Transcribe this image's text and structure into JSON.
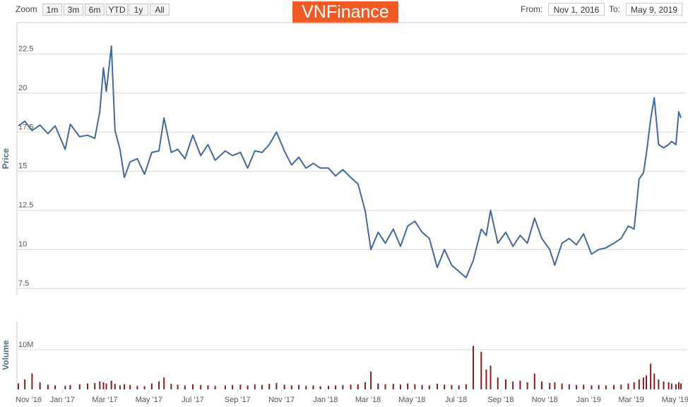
{
  "range_selector": {
    "zoom_label": "Zoom",
    "buttons": [
      "1m",
      "3m",
      "6m",
      "YTD",
      "1y",
      "All"
    ],
    "from_label": "From:",
    "from": "Nov 1, 2016",
    "to_label": "To:",
    "to": "May 9, 2019"
  },
  "logo": "VNFinance",
  "chart_data": [
    {
      "type": "line",
      "ylabel": "Price",
      "color": "#41699b",
      "xlim": [
        "2016-11-01",
        "2019-05-09"
      ],
      "ylim": [
        7.1,
        24.5
      ],
      "yticks": [
        7.5,
        10,
        12.5,
        15,
        17.5,
        20,
        22.5
      ],
      "grid": true,
      "x": [
        "2016-11-01",
        "2016-11-10",
        "2016-11-20",
        "2016-12-01",
        "2016-12-12",
        "2016-12-22",
        "2017-01-05",
        "2017-01-12",
        "2017-01-25",
        "2017-02-05",
        "2017-02-15",
        "2017-02-22",
        "2017-02-27",
        "2017-03-03",
        "2017-03-10",
        "2017-03-15",
        "2017-03-22",
        "2017-03-28",
        "2017-04-05",
        "2017-04-15",
        "2017-04-25",
        "2017-05-05",
        "2017-05-15",
        "2017-05-22",
        "2017-06-01",
        "2017-06-10",
        "2017-06-20",
        "2017-07-01",
        "2017-07-12",
        "2017-07-22",
        "2017-08-01",
        "2017-08-15",
        "2017-08-25",
        "2017-09-05",
        "2017-09-15",
        "2017-09-25",
        "2017-10-05",
        "2017-10-15",
        "2017-10-25",
        "2017-11-05",
        "2017-11-15",
        "2017-11-25",
        "2017-12-05",
        "2017-12-15",
        "2017-12-25",
        "2018-01-05",
        "2018-01-15",
        "2018-01-25",
        "2018-02-05",
        "2018-02-15",
        "2018-02-25",
        "2018-03-05",
        "2018-03-15",
        "2018-03-25",
        "2018-04-05",
        "2018-04-15",
        "2018-04-25",
        "2018-05-05",
        "2018-05-15",
        "2018-05-25",
        "2018-06-05",
        "2018-06-15",
        "2018-06-25",
        "2018-07-05",
        "2018-07-15",
        "2018-07-25",
        "2018-08-05",
        "2018-08-12",
        "2018-08-18",
        "2018-08-28",
        "2018-09-08",
        "2018-09-18",
        "2018-09-28",
        "2018-10-08",
        "2018-10-18",
        "2018-10-28",
        "2018-11-08",
        "2018-11-15",
        "2018-11-25",
        "2018-12-05",
        "2018-12-15",
        "2018-12-25",
        "2019-01-05",
        "2019-01-15",
        "2019-01-25",
        "2019-02-05",
        "2019-02-15",
        "2019-02-25",
        "2019-03-05",
        "2019-03-12",
        "2019-03-18",
        "2019-03-22",
        "2019-03-28",
        "2019-04-02",
        "2019-04-08",
        "2019-04-15",
        "2019-04-22",
        "2019-04-26",
        "2019-05-02",
        "2019-05-06",
        "2019-05-09"
      ],
      "values": [
        17.9,
        18.2,
        17.6,
        17.95,
        17.4,
        17.9,
        16.4,
        18.0,
        17.2,
        17.3,
        17.1,
        18.8,
        21.6,
        20.1,
        23.0,
        17.6,
        16.4,
        14.6,
        15.6,
        15.8,
        14.8,
        16.2,
        16.3,
        18.4,
        16.2,
        16.4,
        15.8,
        17.3,
        16.0,
        16.7,
        15.7,
        16.3,
        16.0,
        16.2,
        15.2,
        16.3,
        16.2,
        16.7,
        17.5,
        16.3,
        15.4,
        15.9,
        15.2,
        15.5,
        15.2,
        15.2,
        14.7,
        15.1,
        14.6,
        14.2,
        12.5,
        10.0,
        11.1,
        10.4,
        11.3,
        10.2,
        11.5,
        11.8,
        11.1,
        10.7,
        8.85,
        10.0,
        9.0,
        8.6,
        8.2,
        9.3,
        11.3,
        10.9,
        12.5,
        10.4,
        11.1,
        10.2,
        10.9,
        10.4,
        12.0,
        10.7,
        10.0,
        9.0,
        10.4,
        10.7,
        10.3,
        11.0,
        9.7,
        10.0,
        10.1,
        10.4,
        10.7,
        11.5,
        11.3,
        14.5,
        14.9,
        16.1,
        18.3,
        19.7,
        16.7,
        16.5,
        16.7,
        16.9,
        16.7,
        18.8,
        18.4
      ]
    },
    {
      "type": "bar",
      "ylabel": "Volume",
      "color": "#8b1c1c",
      "xlim": [
        "2016-11-01",
        "2019-05-09"
      ],
      "ylim": [
        0,
        17300000
      ],
      "yticks": [
        {
          "value": 10000000,
          "label": "10M"
        }
      ],
      "grid": true,
      "xticks": [
        {
          "value": "2016-11-01",
          "label": "Nov '16"
        },
        {
          "value": "2017-01-01",
          "label": "Jan '17"
        },
        {
          "value": "2017-03-01",
          "label": "Mar '17"
        },
        {
          "value": "2017-05-01",
          "label": "May '17"
        },
        {
          "value": "2017-07-01",
          "label": "Jul '17"
        },
        {
          "value": "2017-09-01",
          "label": "Sep '17"
        },
        {
          "value": "2017-11-01",
          "label": "Nov '17"
        },
        {
          "value": "2018-01-01",
          "label": "Jan '18"
        },
        {
          "value": "2018-03-01",
          "label": "Mar '18"
        },
        {
          "value": "2018-05-01",
          "label": "May '18"
        },
        {
          "value": "2018-07-01",
          "label": "Jul '18"
        },
        {
          "value": "2018-09-01",
          "label": "Sep '18"
        },
        {
          "value": "2018-11-01",
          "label": "Nov '18"
        },
        {
          "value": "2019-01-01",
          "label": "Jan '19"
        },
        {
          "value": "2019-03-01",
          "label": "Mar '19"
        },
        {
          "value": "2019-05-01",
          "label": "May '19"
        }
      ],
      "x": [
        "2016-11-01",
        "2016-11-10",
        "2016-11-20",
        "2016-12-01",
        "2016-12-12",
        "2016-12-22",
        "2017-01-05",
        "2017-01-12",
        "2017-01-25",
        "2017-02-05",
        "2017-02-15",
        "2017-02-22",
        "2017-02-27",
        "2017-03-03",
        "2017-03-10",
        "2017-03-15",
        "2017-03-22",
        "2017-03-28",
        "2017-04-05",
        "2017-04-15",
        "2017-04-25",
        "2017-05-05",
        "2017-05-15",
        "2017-05-22",
        "2017-06-01",
        "2017-06-10",
        "2017-06-20",
        "2017-07-01",
        "2017-07-12",
        "2017-07-22",
        "2017-08-01",
        "2017-08-15",
        "2017-08-25",
        "2017-09-05",
        "2017-09-15",
        "2017-09-25",
        "2017-10-05",
        "2017-10-15",
        "2017-10-25",
        "2017-11-05",
        "2017-11-15",
        "2017-11-25",
        "2017-12-05",
        "2017-12-15",
        "2017-12-25",
        "2018-01-05",
        "2018-01-15",
        "2018-01-25",
        "2018-02-05",
        "2018-02-15",
        "2018-02-25",
        "2018-03-05",
        "2018-03-15",
        "2018-03-25",
        "2018-04-05",
        "2018-04-15",
        "2018-04-25",
        "2018-05-05",
        "2018-05-15",
        "2018-05-25",
        "2018-06-05",
        "2018-06-15",
        "2018-06-25",
        "2018-07-05",
        "2018-07-15",
        "2018-07-25",
        "2018-08-05",
        "2018-08-12",
        "2018-08-18",
        "2018-08-28",
        "2018-09-08",
        "2018-09-18",
        "2018-09-28",
        "2018-10-08",
        "2018-10-18",
        "2018-10-28",
        "2018-11-08",
        "2018-11-15",
        "2018-11-25",
        "2018-12-05",
        "2018-12-15",
        "2018-12-25",
        "2019-01-05",
        "2019-01-15",
        "2019-01-25",
        "2019-02-05",
        "2019-02-15",
        "2019-02-25",
        "2019-03-05",
        "2019-03-12",
        "2019-03-18",
        "2019-03-22",
        "2019-03-28",
        "2019-04-02",
        "2019-04-08",
        "2019-04-15",
        "2019-04-22",
        "2019-04-26",
        "2019-05-02",
        "2019-05-06",
        "2019-05-09"
      ],
      "values": [
        1500000,
        2500000,
        4000000,
        1800000,
        1200000,
        1000000,
        900000,
        1100000,
        1300000,
        1500000,
        1600000,
        2000000,
        1800000,
        1500000,
        2200000,
        1400000,
        1000000,
        1300000,
        1100000,
        900000,
        800000,
        1500000,
        2000000,
        3000000,
        1400000,
        1200000,
        1000000,
        1300000,
        1100000,
        1000000,
        900000,
        1000000,
        1100000,
        1200000,
        1000000,
        1300000,
        1100000,
        1400000,
        1600000,
        1200000,
        1000000,
        1100000,
        900000,
        1000000,
        800000,
        900000,
        1000000,
        1100000,
        1200000,
        1300000,
        1800000,
        4500000,
        1500000,
        1300000,
        1400000,
        1200000,
        1500000,
        1300000,
        1100000,
        1000000,
        1400000,
        1200000,
        1100000,
        1000000,
        1300000,
        11000000,
        9500000,
        5000000,
        6000000,
        3000000,
        2500000,
        2000000,
        2200000,
        1800000,
        4000000,
        2000000,
        1600000,
        1800000,
        1500000,
        1300000,
        1100000,
        1200000,
        1000000,
        1100000,
        1000000,
        1100000,
        1200000,
        1500000,
        1800000,
        2500000,
        3000000,
        3500000,
        6500000,
        4000000,
        2500000,
        2000000,
        1800000,
        1500000,
        1300000,
        1800000,
        1500000
      ]
    }
  ]
}
